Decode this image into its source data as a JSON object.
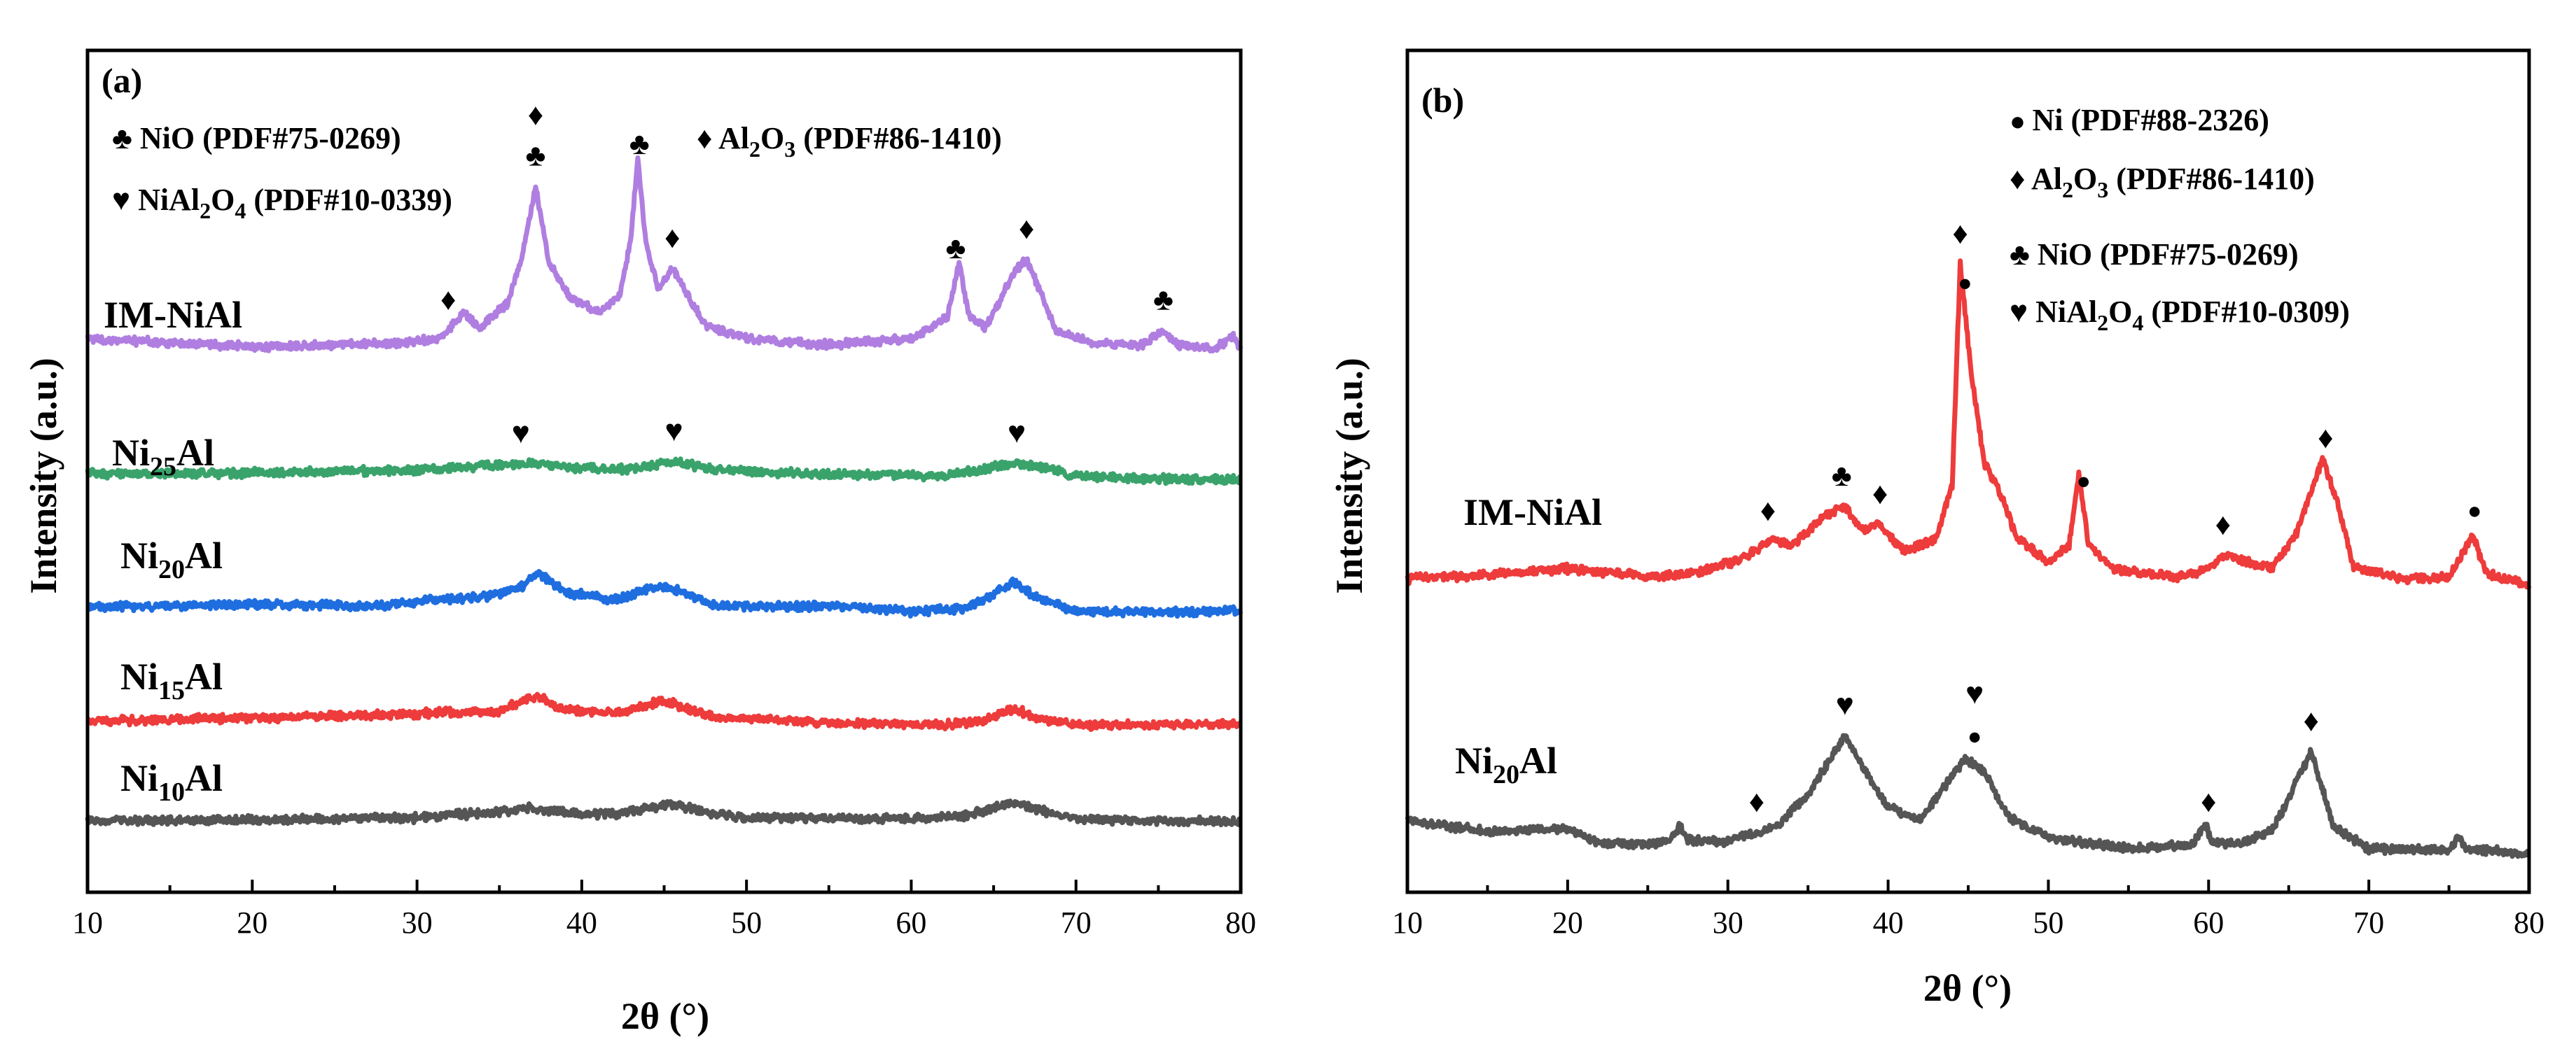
{
  "chart_data": [
    {
      "panel": "(a)",
      "type": "line",
      "xlabel": "2θ (°)",
      "ylabel": "Intensity (a.u.)",
      "xlim": [
        10,
        80
      ],
      "xticks": [
        "10",
        "20",
        "30",
        "40",
        "50",
        "60",
        "70",
        "80"
      ],
      "yticks": [],
      "legend_lines": [
        {
          "sym": "♣",
          "name": "NiO",
          "sub": "",
          "name2": "",
          "code": "(PDF#75-0269)"
        },
        {
          "sym": "♦",
          "name": "Al",
          "sub": "2",
          "name2": "O",
          "sub2": "3",
          "code": "(PDF#86-1410)"
        },
        {
          "sym": "♥",
          "name": "NiAl",
          "sub": "2",
          "name2": "O",
          "sub2": "4",
          "code": "(PDF#10-0339)"
        }
      ],
      "series": [
        {
          "name": "IM-NiAl",
          "label_main": "IM-NiAl",
          "label_sub": "",
          "label_tail": "",
          "color": "#b07ee0",
          "points": [
            [
              10,
              1.8
            ],
            [
              20,
              1.0
            ],
            [
              28,
              1.3
            ],
            [
              31.5,
              1.8
            ],
            [
              32.8,
              4.4
            ],
            [
              33.8,
              2.8
            ],
            [
              35.5,
              5.3
            ],
            [
              36.4,
              10.0
            ],
            [
              37.2,
              16.8
            ],
            [
              38.0,
              9.5
            ],
            [
              39.3,
              5.8
            ],
            [
              41,
              4.4
            ],
            [
              42.3,
              5.9
            ],
            [
              43.0,
              12.0
            ],
            [
              43.4,
              19.6
            ],
            [
              43.9,
              11.2
            ],
            [
              44.6,
              6.8
            ],
            [
              45.5,
              8.7
            ],
            [
              46.4,
              6.3
            ],
            [
              47.5,
              3.1
            ],
            [
              50,
              1.8
            ],
            [
              55,
              1.2
            ],
            [
              60,
              1.8
            ],
            [
              62.2,
              4.0
            ],
            [
              62.9,
              9.1
            ],
            [
              63.5,
              4.1
            ],
            [
              64.5,
              2.9
            ],
            [
              66.3,
              8.5
            ],
            [
              67.0,
              9.6
            ],
            [
              67.7,
              6.9
            ],
            [
              68.8,
              2.5
            ],
            [
              71,
              1.4
            ],
            [
              74,
              1.2
            ],
            [
              75.3,
              2.6
            ],
            [
              76.2,
              1.2
            ],
            [
              78.5,
              0.8
            ],
            [
              79.5,
              2.0
            ],
            [
              80,
              0.9
            ]
          ],
          "markers": [
            {
              "x": 31.9,
              "s": "♦"
            },
            {
              "x": 37.2,
              "s": "♣"
            },
            {
              "x": 37.2,
              "s": "♦"
            },
            {
              "x": 43.5,
              "s": "♣"
            },
            {
              "x": 45.5,
              "s": "♦"
            },
            {
              "x": 62.7,
              "s": "♣"
            },
            {
              "x": 67.0,
              "s": "♦"
            },
            {
              "x": 75.3,
              "s": "♣"
            }
          ]
        },
        {
          "name": "Ni25Al",
          "label_main": "Ni",
          "label_sub": "25",
          "label_tail": "Al",
          "color": "#3aa36b",
          "points": [
            [
              10,
              0.9
            ],
            [
              20,
              1.0
            ],
            [
              30,
              1.3
            ],
            [
              35,
              1.8
            ],
            [
              37,
              2.0
            ],
            [
              40,
              1.5
            ],
            [
              43,
              1.4
            ],
            [
              45.8,
              2.2
            ],
            [
              48,
              1.3
            ],
            [
              55,
              0.9
            ],
            [
              62,
              0.7
            ],
            [
              66.2,
              2.0
            ],
            [
              67.5,
              1.8
            ],
            [
              70,
              0.7
            ],
            [
              75,
              0.4
            ],
            [
              80,
              0.3
            ]
          ],
          "markers": [
            {
              "x": 36.3,
              "s": "♥"
            },
            {
              "x": 45.6,
              "s": "♥"
            },
            {
              "x": 66.4,
              "s": "♥"
            }
          ]
        },
        {
          "name": "Ni20Al",
          "label_main": "Ni",
          "label_sub": "20",
          "label_tail": "Al",
          "color": "#1f6ee0",
          "points": [
            [
              10,
              0.9
            ],
            [
              20,
              1.2
            ],
            [
              28,
              1.0
            ],
            [
              31,
              1.7
            ],
            [
              34,
              1.9
            ],
            [
              36,
              2.6
            ],
            [
              37.4,
              4.3
            ],
            [
              39,
              2.4
            ],
            [
              42,
              1.6
            ],
            [
              44.8,
              3.1
            ],
            [
              46.5,
              2.2
            ],
            [
              48,
              1.0
            ],
            [
              55,
              1.0
            ],
            [
              60,
              0.4
            ],
            [
              63.5,
              0.8
            ],
            [
              66.2,
              3.5
            ],
            [
              67.5,
              1.9
            ],
            [
              70,
              0.5
            ],
            [
              75,
              0.4
            ],
            [
              80,
              0.5
            ]
          ],
          "markers": []
        },
        {
          "name": "Ni15Al",
          "label_main": "Ni",
          "label_sub": "15",
          "label_tail": "Al",
          "color": "#ee3b3b",
          "points": [
            [
              10,
              0.7
            ],
            [
              20,
              1.0
            ],
            [
              28,
              1.3
            ],
            [
              32,
              1.6
            ],
            [
              35,
              1.7
            ],
            [
              37.3,
              3.3
            ],
            [
              38.5,
              2.0
            ],
            [
              42,
              1.4
            ],
            [
              45,
              2.8
            ],
            [
              46.5,
              1.9
            ],
            [
              48,
              1.1
            ],
            [
              55,
              0.5
            ],
            [
              62,
              0.3
            ],
            [
              64.5,
              0.8
            ],
            [
              66.3,
              2.0
            ],
            [
              67.5,
              1.0
            ],
            [
              70,
              0.3
            ],
            [
              80,
              0.3
            ]
          ],
          "markers": []
        },
        {
          "name": "Ni10Al",
          "label_main": "Ni",
          "label_sub": "10",
          "label_tail": "Al",
          "color": "#555555",
          "points": [
            [
              10,
              0.5
            ],
            [
              20,
              0.6
            ],
            [
              30,
              0.8
            ],
            [
              34,
              1.3
            ],
            [
              37,
              1.8
            ],
            [
              39,
              1.3
            ],
            [
              42,
              1.2
            ],
            [
              45.6,
              2.3
            ],
            [
              47,
              1.5
            ],
            [
              50,
              0.8
            ],
            [
              58,
              0.7
            ],
            [
              63,
              0.9
            ],
            [
              66.3,
              2.4
            ],
            [
              67.5,
              1.7
            ],
            [
              70,
              0.7
            ],
            [
              75,
              0.5
            ],
            [
              80,
              0.4
            ]
          ],
          "markers": []
        }
      ]
    },
    {
      "panel": "(b)",
      "type": "line",
      "xlabel": "2θ (°)",
      "ylabel": "Intensity (a.u.)",
      "xlim": [
        10,
        80
      ],
      "xticks": [
        "10",
        "20",
        "30",
        "40",
        "50",
        "60",
        "70",
        "80"
      ],
      "yticks": [],
      "legend_lines": [
        {
          "sym": "●",
          "name": "Ni",
          "sub": "",
          "name2": "",
          "code": "(PDF#88-2326)"
        },
        {
          "sym": "♦",
          "name": "Al",
          "sub": "2",
          "name2": "O",
          "sub2": "3",
          "code": "(PDF#86-1410)"
        },
        {
          "sym": "♣",
          "name": "NiO",
          "sub": "",
          "name2": "",
          "code": "(PDF#75-0269)"
        },
        {
          "sym": "♥",
          "name": "NiAl",
          "sub": "2",
          "name2": "O",
          "sub2": "4",
          "code": "(PDF#10-0309)"
        }
      ],
      "series": [
        {
          "name": "IM-NiAl",
          "label_main": "IM-NiAl",
          "label_sub": "",
          "label_tail": "",
          "color": "#ee3b3b",
          "points": [
            [
              10,
              0.6
            ],
            [
              15,
              0.9
            ],
            [
              20,
              1.3
            ],
            [
              25,
              0.8
            ],
            [
              28,
              1.0
            ],
            [
              31,
              2.0
            ],
            [
              32.7,
              3.3
            ],
            [
              34,
              2.9
            ],
            [
              36,
              4.8
            ],
            [
              37.2,
              5.6
            ],
            [
              38.5,
              3.8
            ],
            [
              39.4,
              4.4
            ],
            [
              41,
              2.5
            ],
            [
              43,
              3.4
            ],
            [
              44.0,
              7.0
            ],
            [
              44.5,
              22.0
            ],
            [
              45.2,
              14.5
            ],
            [
              46,
              8.5
            ],
            [
              47,
              6.4
            ],
            [
              48,
              3.5
            ],
            [
              50,
              1.7
            ],
            [
              51.3,
              3.0
            ],
            [
              51.9,
              7.6
            ],
            [
              52.5,
              3.0
            ],
            [
              54,
              1.3
            ],
            [
              58,
              0.7
            ],
            [
              60,
              1.3
            ],
            [
              61,
              2.3
            ],
            [
              62.5,
              1.7
            ],
            [
              64,
              1.4
            ],
            [
              65.5,
              3.8
            ],
            [
              67.1,
              8.7
            ],
            [
              68,
              6.0
            ],
            [
              69,
              1.5
            ],
            [
              72,
              0.6
            ],
            [
              75,
              0.7
            ],
            [
              76.5,
              3.6
            ],
            [
              77.3,
              1.0
            ],
            [
              80,
              0.2
            ]
          ],
          "markers": [
            {
              "x": 32.5,
              "s": "♦"
            },
            {
              "x": 37.1,
              "s": "♣"
            },
            {
              "x": 39.5,
              "s": "♦"
            },
            {
              "x": 44.5,
              "s": "♦"
            },
            {
              "x": 44.8,
              "s": "●"
            },
            {
              "x": 52.2,
              "s": "●"
            },
            {
              "x": 60.9,
              "s": "♦"
            },
            {
              "x": 67.3,
              "s": "♦"
            },
            {
              "x": 76.6,
              "s": "●"
            }
          ]
        },
        {
          "name": "Ni20Al",
          "label_main": "Ni",
          "label_sub": "20",
          "label_tail": "Al",
          "color": "#555555",
          "points": [
            [
              10,
              2.7
            ],
            [
              15,
              2.0
            ],
            [
              20,
              2.2
            ],
            [
              22,
              1.2
            ],
            [
              25,
              1.1
            ],
            [
              26.5,
              1.5
            ],
            [
              27,
              2.4
            ],
            [
              27.5,
              1.4
            ],
            [
              30,
              1.3
            ],
            [
              33,
              2.3
            ],
            [
              35,
              4.5
            ],
            [
              37.3,
              8.5
            ],
            [
              38.5,
              6.3
            ],
            [
              40,
              3.6
            ],
            [
              42,
              2.8
            ],
            [
              43.6,
              5.2
            ],
            [
              44.8,
              6.9
            ],
            [
              46,
              6.1
            ],
            [
              47.5,
              3.0
            ],
            [
              50,
              1.6
            ],
            [
              55,
              0.8
            ],
            [
              59,
              1.1
            ],
            [
              59.8,
              2.6
            ],
            [
              60.2,
              1.2
            ],
            [
              62,
              1.2
            ],
            [
              64,
              2.1
            ],
            [
              66.4,
              7.4
            ],
            [
              67.8,
              2.3
            ],
            [
              70,
              0.8
            ],
            [
              75,
              0.7
            ],
            [
              75.6,
              1.6
            ],
            [
              76,
              0.8
            ],
            [
              80,
              0.5
            ]
          ],
          "markers": [
            {
              "x": 31.8,
              "s": "♦"
            },
            {
              "x": 37.3,
              "s": "♥"
            },
            {
              "x": 45.4,
              "s": "●"
            },
            {
              "x": 45.4,
              "s": "♥"
            },
            {
              "x": 60.0,
              "s": "♦"
            },
            {
              "x": 66.4,
              "s": "♦"
            }
          ]
        }
      ]
    }
  ]
}
